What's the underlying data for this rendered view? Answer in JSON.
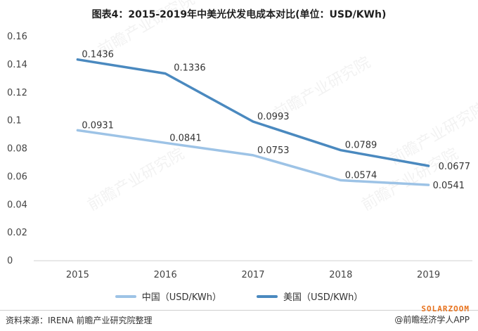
{
  "title": "图表4：2015-2019年中美光伏发电成本对比(单位：USD/KWh)",
  "source": "资料来源：IRENA 前瞻产业研究院整理",
  "brand": {
    "top": "SOLARZOOM",
    "bottom": "@前瞻经济学人APP"
  },
  "watermark": "前瞻产业研究院",
  "colors": {
    "china": "#9dc3e6",
    "usa": "#4a89bf"
  },
  "chart_data": {
    "type": "line",
    "title": "图表4：2015-2019年中美光伏发电成本对比(单位：USD/KWh)",
    "xlabel": "",
    "ylabel": "",
    "x": [
      "2015",
      "2016",
      "2017",
      "2018",
      "2019"
    ],
    "ylim": [
      0,
      0.16
    ],
    "yticks": [
      "0",
      "0.02",
      "0.04",
      "0.06",
      "0.08",
      "0.1",
      "0.12",
      "0.14",
      "0.16"
    ],
    "grid": false,
    "legend": "bottom",
    "series": [
      {
        "name": "中国（USD/KWh）",
        "key": "china",
        "values": [
          0.0931,
          0.0841,
          0.0753,
          0.0574,
          0.0541
        ],
        "labels": [
          "0.0931",
          "0.0841",
          "0.0753",
          "0.0574",
          "0.0541"
        ]
      },
      {
        "name": "美国（USD/KWh）",
        "key": "usa",
        "values": [
          0.1436,
          0.1336,
          0.0993,
          0.0789,
          0.0677
        ],
        "labels": [
          "0.1436",
          "0.1336",
          "0.0993",
          "0.0789",
          "0.0677"
        ]
      }
    ]
  }
}
